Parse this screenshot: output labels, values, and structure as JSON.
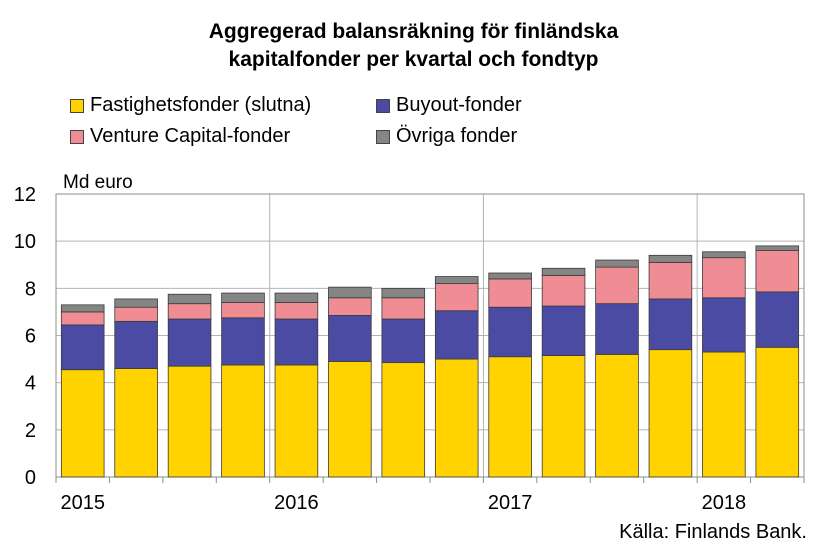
{
  "title_line1": "Aggregerad balansräkning för finländska",
  "title_line2": "kapitalfonder per kvartal och fondtyp",
  "unit_label": "Md euro",
  "source": "Källa: Finlands Bank.",
  "colors": {
    "Fastighetsfonder (slutna)": "#ffd200",
    "Buyout-fonder": "#4b4ba3",
    "Venture Capital-fonder": "#f08c94",
    "Övriga fonder": "#858585"
  },
  "chart_data": {
    "type": "bar",
    "stacked": true,
    "title": "Aggregerad balansräkning för finländska kapitalfonder per kvartal och fondtyp",
    "ylabel": "Md euro",
    "ylim": [
      0,
      12
    ],
    "yticks": [
      0,
      2,
      4,
      6,
      8,
      10,
      12
    ],
    "year_labels": [
      "2015",
      "2016",
      "2017",
      "2018"
    ],
    "categories": [
      "2015Q1",
      "2015Q2",
      "2015Q3",
      "2015Q4",
      "2016Q1",
      "2016Q2",
      "2016Q3",
      "2016Q4",
      "2017Q1",
      "2017Q2",
      "2017Q3",
      "2017Q4",
      "2018Q1",
      "2018Q2"
    ],
    "grid": true,
    "legend_position": "top",
    "series": [
      {
        "name": "Fastighetsfonder (slutna)",
        "values": [
          4.55,
          4.6,
          4.7,
          4.75,
          4.75,
          4.9,
          4.85,
          5.0,
          5.1,
          5.15,
          5.2,
          5.4,
          5.3,
          5.5
        ]
      },
      {
        "name": "Buyout-fonder",
        "values": [
          1.9,
          2.0,
          2.0,
          2.0,
          1.95,
          1.95,
          1.85,
          2.05,
          2.1,
          2.1,
          2.15,
          2.15,
          2.3,
          2.35
        ]
      },
      {
        "name": "Venture Capital-fonder",
        "values": [
          0.55,
          0.6,
          0.65,
          0.65,
          0.7,
          0.75,
          0.9,
          1.15,
          1.2,
          1.3,
          1.55,
          1.55,
          1.7,
          1.75
        ]
      },
      {
        "name": "Övriga fonder",
        "values": [
          0.3,
          0.35,
          0.4,
          0.4,
          0.4,
          0.45,
          0.4,
          0.3,
          0.25,
          0.3,
          0.3,
          0.3,
          0.25,
          0.2
        ]
      }
    ]
  }
}
